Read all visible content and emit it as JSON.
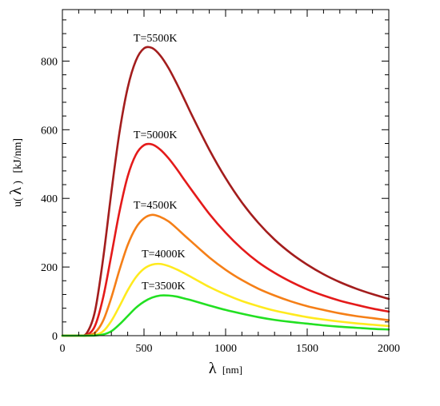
{
  "chart_data": {
    "type": "line",
    "title": "",
    "xlabel": {
      "symbol": "λ",
      "unit": "[nm]"
    },
    "ylabel": {
      "prefix": "u(",
      "symbol": "λ",
      "suffix": ")",
      "unit": "[kJ/nm]"
    },
    "xlim": [
      0,
      2000
    ],
    "ylim": [
      0,
      950
    ],
    "xticks": [
      0,
      500,
      1000,
      1500,
      2000
    ],
    "yticks": [
      0,
      200,
      400,
      600,
      800
    ],
    "grid": false,
    "x": [
      0,
      100,
      150,
      200,
      250,
      300,
      350,
      400,
      450,
      500,
      550,
      600,
      650,
      700,
      750,
      800,
      900,
      1000,
      1100,
      1200,
      1300,
      1400,
      1500,
      1600,
      1700,
      1800,
      1900,
      2000
    ],
    "series": [
      {
        "name": "T=5500K",
        "color": "#a31d1d",
        "values": [
          0,
          0.3,
          8,
          72,
          226,
          418,
          593,
          722,
          801,
          837,
          838,
          816,
          780,
          735,
          686,
          636,
          542,
          459,
          388,
          329,
          280,
          240,
          207,
          179,
          156,
          137,
          121,
          107
        ]
      },
      {
        "name": "T=5000K",
        "color": "#e41a1a",
        "values": [
          0,
          0.1,
          2,
          29,
          112,
          235,
          362,
          464,
          527,
          555,
          557,
          542,
          517,
          486,
          452,
          419,
          355,
          300,
          253,
          214,
          183,
          157,
          135,
          117,
          102,
          90,
          79,
          70
        ]
      },
      {
        "name": "T=4500K",
        "color": "#f57f17",
        "values": [
          0,
          0.01,
          0.5,
          9,
          44,
          111,
          192,
          264,
          314,
          342,
          352,
          346,
          333,
          313,
          291,
          270,
          228,
          192,
          162,
          137,
          117,
          100,
          86,
          75,
          65,
          57,
          51,
          45
        ]
      },
      {
        "name": "T=4000K",
        "color": "#ffea1e",
        "values": [
          0,
          0.001,
          0.1,
          2,
          13,
          43,
          86,
          132,
          170,
          195,
          207,
          209,
          203,
          193,
          181,
          168,
          142,
          120,
          101,
          86,
          73,
          63,
          54,
          47,
          41,
          36,
          32,
          28
        ]
      },
      {
        "name": "T=3500K",
        "color": "#22e022",
        "values": [
          0,
          0.0001,
          0.01,
          0.5,
          3.5,
          13,
          33,
          57,
          81,
          99,
          111,
          117,
          117,
          114,
          108,
          102,
          88,
          75,
          64,
          54,
          46,
          40,
          35,
          30,
          26,
          23,
          20,
          18
        ]
      }
    ]
  }
}
